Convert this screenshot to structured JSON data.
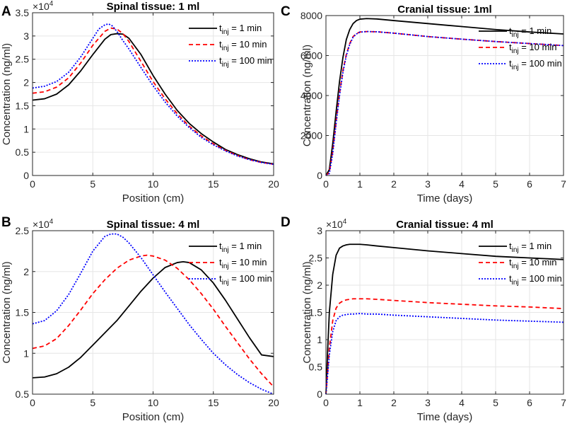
{
  "chart_data": [
    {
      "type": "line",
      "panel_label": "A",
      "title": "Spinal tissue: 1 ml",
      "xlabel": "Position (cm)",
      "ylabel": "Concentration (ng/ml)",
      "y_multiplier": "×10",
      "y_exponent": "4",
      "xlim": [
        0,
        20
      ],
      "ylim": [
        0,
        3.5
      ],
      "xticks": [
        0,
        5,
        10,
        15,
        20
      ],
      "yticks": [
        0,
        0.5,
        1,
        1.5,
        2,
        2.5,
        3,
        3.5
      ],
      "ytick_labels": [
        "0",
        "0.5",
        "1",
        "1.5",
        "2",
        "2.5",
        "3",
        "3.5"
      ],
      "legend_position": "top-right",
      "series": [
        {
          "name_main": "t",
          "name_sub": "inj",
          "name_rest": " = 1 min",
          "color": "#000000",
          "dash": "",
          "width": 1.8,
          "x": [
            0,
            1,
            2,
            3,
            4,
            5,
            6,
            6.5,
            7,
            7.5,
            8,
            9,
            10,
            11,
            12,
            13,
            14,
            15,
            16,
            17,
            18,
            19,
            20
          ],
          "y": [
            1.62,
            1.65,
            1.75,
            1.95,
            2.25,
            2.6,
            2.93,
            3.03,
            3.05,
            3.04,
            2.95,
            2.6,
            2.15,
            1.75,
            1.4,
            1.12,
            0.9,
            0.72,
            0.56,
            0.45,
            0.36,
            0.29,
            0.25
          ]
        },
        {
          "name_main": "t",
          "name_sub": "inj",
          "name_rest": " = 10 min",
          "color": "#ff0000",
          "dash": "6,4",
          "width": 1.8,
          "x": [
            0,
            1,
            2,
            3,
            4,
            5,
            6,
            6.5,
            7,
            7.5,
            8,
            9,
            10,
            11,
            12,
            13,
            14,
            15,
            16,
            17,
            18,
            19,
            20
          ],
          "y": [
            1.77,
            1.8,
            1.9,
            2.1,
            2.42,
            2.8,
            3.1,
            3.17,
            3.15,
            3.05,
            2.88,
            2.45,
            2.02,
            1.65,
            1.33,
            1.06,
            0.85,
            0.68,
            0.54,
            0.43,
            0.34,
            0.28,
            0.24
          ]
        },
        {
          "name_main": "t",
          "name_sub": "inj",
          "name_rest": " = 100 min",
          "color": "#0000ff",
          "dash": "2,2",
          "width": 1.8,
          "x": [
            0,
            1,
            2,
            3,
            4,
            5,
            5.5,
            6,
            6.3,
            6.6,
            7,
            7.5,
            8,
            9,
            10,
            11,
            12,
            13,
            14,
            15,
            16,
            17,
            18,
            19,
            20
          ],
          "y": [
            1.88,
            1.92,
            2.02,
            2.22,
            2.55,
            2.95,
            3.15,
            3.24,
            3.26,
            3.22,
            3.1,
            2.9,
            2.72,
            2.32,
            1.93,
            1.58,
            1.28,
            1.03,
            0.82,
            0.66,
            0.53,
            0.42,
            0.34,
            0.28,
            0.24
          ]
        }
      ]
    },
    {
      "type": "line",
      "panel_label": "C",
      "title": "Cranial tissue: 1ml",
      "xlabel": "Time (days)",
      "ylabel": "Concentration (ng/ml)",
      "y_multiplier": "",
      "y_exponent": "",
      "xlim": [
        0,
        7
      ],
      "ylim": [
        0,
        8000
      ],
      "xticks": [
        0,
        1,
        2,
        3,
        4,
        5,
        6,
        7
      ],
      "yticks": [
        0,
        2000,
        4000,
        6000,
        8000
      ],
      "ytick_labels": [
        "0",
        "2000",
        "4000",
        "6000",
        "8000"
      ],
      "legend_position": "top-right",
      "series": [
        {
          "name_main": "t",
          "name_sub": "inj",
          "name_rest": " = 1 min",
          "color": "#000000",
          "dash": "",
          "width": 1.8,
          "x": [
            0,
            0.1,
            0.2,
            0.3,
            0.4,
            0.5,
            0.6,
            0.7,
            0.8,
            0.9,
            1.0,
            1.2,
            1.5,
            2,
            3,
            4,
            5,
            6,
            7
          ],
          "y": [
            0,
            300,
            1600,
            3200,
            4700,
            5900,
            6800,
            7300,
            7600,
            7750,
            7820,
            7850,
            7830,
            7750,
            7600,
            7450,
            7300,
            7180,
            7080
          ]
        },
        {
          "name_main": "t",
          "name_sub": "inj",
          "name_rest": " = 10 min",
          "color": "#ff0000",
          "dash": "6,4",
          "width": 1.8,
          "x": [
            0,
            0.1,
            0.2,
            0.3,
            0.4,
            0.5,
            0.6,
            0.7,
            0.8,
            0.9,
            1.0,
            1.2,
            1.5,
            2,
            3,
            4,
            5,
            6,
            7
          ],
          "y": [
            0,
            150,
            1200,
            2700,
            4100,
            5250,
            6050,
            6600,
            6950,
            7100,
            7180,
            7200,
            7190,
            7120,
            6950,
            6820,
            6700,
            6600,
            6500
          ]
        },
        {
          "name_main": "t",
          "name_sub": "inj",
          "name_rest": " = 100 min",
          "color": "#0000ff",
          "dash": "2,2",
          "width": 1.8,
          "x": [
            0,
            0.1,
            0.2,
            0.3,
            0.4,
            0.5,
            0.6,
            0.7,
            0.8,
            0.9,
            1.0,
            1.2,
            1.5,
            2,
            3,
            4,
            5,
            6,
            7
          ],
          "y": [
            0,
            100,
            1100,
            2600,
            4000,
            5150,
            6000,
            6550,
            6920,
            7080,
            7170,
            7200,
            7190,
            7120,
            6950,
            6820,
            6700,
            6600,
            6500
          ]
        }
      ]
    },
    {
      "type": "line",
      "panel_label": "B",
      "title": "Spinal tissue: 4 ml",
      "xlabel": "Position (cm)",
      "ylabel": "Concentration (ng/ml)",
      "y_multiplier": "×10",
      "y_exponent": "4",
      "xlim": [
        0,
        20
      ],
      "ylim": [
        0.5,
        2.5
      ],
      "xticks": [
        0,
        5,
        10,
        15,
        20
      ],
      "yticks": [
        0.5,
        1,
        1.5,
        2,
        2.5
      ],
      "ytick_labels": [
        "0.5",
        "1",
        "1.5",
        "2",
        "2.5"
      ],
      "legend_position": "top-right",
      "series": [
        {
          "name_main": "t",
          "name_sub": "inj",
          "name_rest": " = 1 min",
          "color": "#000000",
          "dash": "",
          "width": 1.8,
          "x": [
            0,
            1,
            2,
            3,
            4,
            5,
            6,
            7,
            8,
            9,
            10,
            11,
            12,
            12.5,
            13,
            14,
            15,
            16,
            17,
            18,
            19,
            20
          ],
          "y": [
            0.7,
            0.71,
            0.75,
            0.83,
            0.95,
            1.1,
            1.25,
            1.4,
            1.58,
            1.76,
            1.92,
            2.05,
            2.11,
            2.12,
            2.11,
            2.02,
            1.86,
            1.65,
            1.42,
            1.19,
            0.98,
            0.96
          ]
        },
        {
          "name_main": "t",
          "name_sub": "inj",
          "name_rest": " = 10 min",
          "color": "#ff0000",
          "dash": "6,4",
          "width": 1.8,
          "x": [
            0,
            1,
            2,
            3,
            4,
            5,
            6,
            7,
            8,
            9,
            9.5,
            10,
            11,
            12,
            13,
            14,
            15,
            16,
            17,
            18,
            19,
            20
          ],
          "y": [
            1.06,
            1.09,
            1.18,
            1.34,
            1.53,
            1.73,
            1.9,
            2.04,
            2.14,
            2.19,
            2.2,
            2.19,
            2.14,
            2.04,
            1.9,
            1.73,
            1.54,
            1.33,
            1.13,
            0.93,
            0.75,
            0.59
          ]
        },
        {
          "name_main": "t",
          "name_sub": "inj",
          "name_rest": " = 100 min",
          "color": "#0000ff",
          "dash": "2,2",
          "width": 1.8,
          "x": [
            0,
            1,
            2,
            3,
            4,
            5,
            6,
            6.5,
            7,
            7.5,
            8,
            9,
            10,
            11,
            12,
            13,
            14,
            15,
            16,
            17,
            18,
            19,
            20
          ],
          "y": [
            1.36,
            1.4,
            1.52,
            1.72,
            1.98,
            2.25,
            2.43,
            2.46,
            2.46,
            2.42,
            2.35,
            2.17,
            1.96,
            1.75,
            1.55,
            1.35,
            1.17,
            1.0,
            0.86,
            0.74,
            0.64,
            0.56,
            0.5
          ]
        }
      ]
    },
    {
      "type": "line",
      "panel_label": "D",
      "title": "Cranial tissue: 4 ml",
      "xlabel": "Time (days)",
      "ylabel": "Concentration (ng/ml)",
      "y_multiplier": "×10",
      "y_exponent": "4",
      "xlim": [
        0,
        7
      ],
      "ylim": [
        0,
        3
      ],
      "xticks": [
        0,
        1,
        2,
        3,
        4,
        5,
        6,
        7
      ],
      "yticks": [
        0,
        0.5,
        1,
        1.5,
        2,
        2.5,
        3
      ],
      "ytick_labels": [
        "0",
        "0.5",
        "1",
        "1.5",
        "2",
        "2.5",
        "3"
      ],
      "legend_position": "top-right",
      "series": [
        {
          "name_main": "t",
          "name_sub": "inj",
          "name_rest": " = 1 min",
          "color": "#000000",
          "dash": "",
          "width": 1.8,
          "x": [
            0,
            0.05,
            0.1,
            0.2,
            0.3,
            0.4,
            0.5,
            0.6,
            0.7,
            0.8,
            1.0,
            1.2,
            1.5,
            2,
            3,
            4,
            5,
            6,
            7
          ],
          "y": [
            0,
            0.8,
            1.5,
            2.2,
            2.55,
            2.68,
            2.72,
            2.74,
            2.75,
            2.75,
            2.75,
            2.74,
            2.72,
            2.69,
            2.63,
            2.58,
            2.53,
            2.5,
            2.47
          ]
        },
        {
          "name_main": "t",
          "name_sub": "inj",
          "name_rest": " = 10 min",
          "color": "#ff0000",
          "dash": "6,4",
          "width": 1.8,
          "x": [
            0,
            0.05,
            0.1,
            0.2,
            0.3,
            0.4,
            0.5,
            0.6,
            0.7,
            0.8,
            1.0,
            1.2,
            1.5,
            2,
            3,
            4,
            5,
            6,
            7
          ],
          "y": [
            0,
            0.4,
            0.85,
            1.35,
            1.58,
            1.67,
            1.71,
            1.73,
            1.74,
            1.75,
            1.75,
            1.75,
            1.74,
            1.72,
            1.68,
            1.65,
            1.62,
            1.6,
            1.57
          ]
        },
        {
          "name_main": "t",
          "name_sub": "inj",
          "name_rest": " = 100 min",
          "color": "#0000ff",
          "dash": "2,2",
          "width": 1.8,
          "x": [
            0,
            0.05,
            0.1,
            0.2,
            0.3,
            0.4,
            0.5,
            0.6,
            0.7,
            0.8,
            1.0,
            1.2,
            1.5,
            2,
            3,
            4,
            5,
            6,
            7
          ],
          "y": [
            0,
            0.35,
            0.72,
            1.15,
            1.35,
            1.42,
            1.45,
            1.46,
            1.47,
            1.47,
            1.48,
            1.47,
            1.47,
            1.45,
            1.42,
            1.39,
            1.36,
            1.34,
            1.32
          ]
        }
      ]
    }
  ]
}
